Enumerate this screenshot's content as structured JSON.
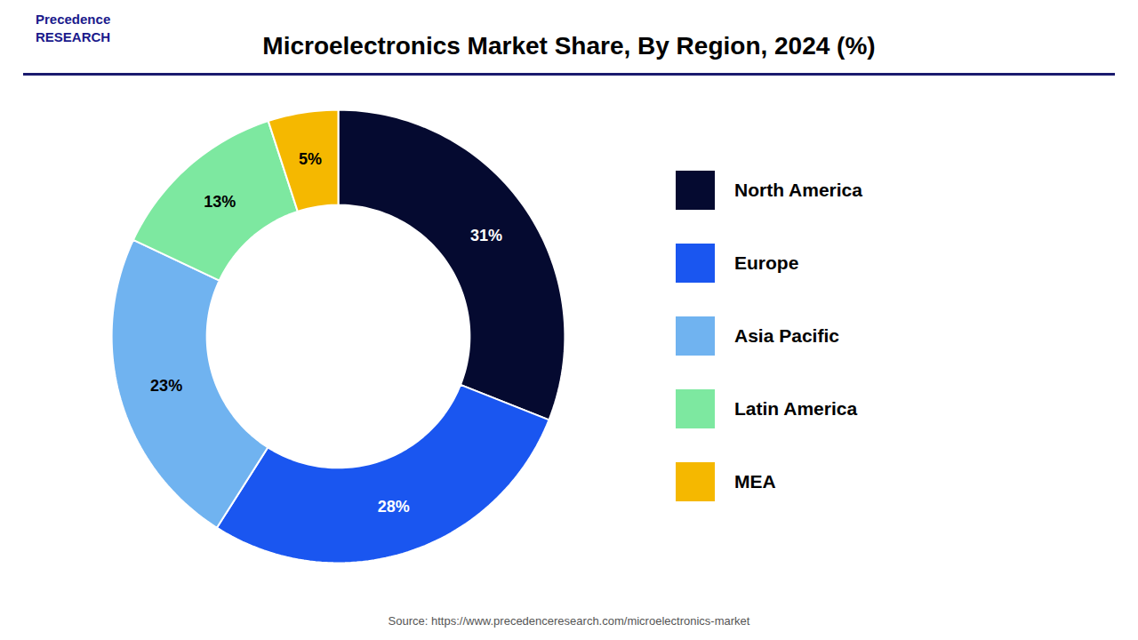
{
  "chart_data": {
    "type": "donut",
    "title": "Microelectronics Market Share, By Region, 2024 (%)",
    "categories": [
      "North America",
      "Europe",
      "Asia Pacific",
      "Latin America",
      "MEA"
    ],
    "values": [
      31,
      28,
      23,
      13,
      5
    ],
    "value_labels": [
      "31%",
      "28%",
      "23%",
      "13%",
      "5%"
    ],
    "colors": [
      "#050a30",
      "#1a56f0",
      "#70b3f0",
      "#7de8a0",
      "#f5b800"
    ],
    "data_labels": true,
    "legend": "right",
    "annotations": [
      "Precedence\nRESEARCH",
      "Source: https://www.precedenceresearch.com/microelectronics-market"
    ]
  }
}
